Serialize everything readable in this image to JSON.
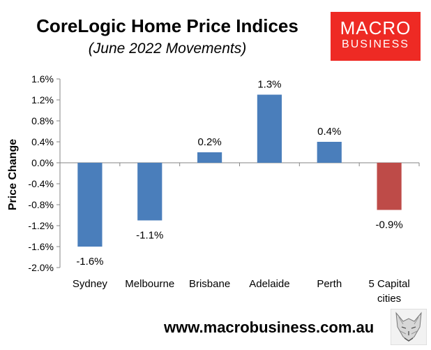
{
  "header": {
    "title": "CoreLogic Home Price Indices",
    "subtitle": "(June 2022 Movements)"
  },
  "logo": {
    "line1": "MACRO",
    "line2": "BUSINESS",
    "color": "#ee2a24"
  },
  "footer": {
    "url": "www.macrobusiness.com.au"
  },
  "chart_data": {
    "type": "bar",
    "title": "CoreLogic Home Price Indices",
    "subtitle": "(June 2022 Movements)",
    "ylabel": "Price Change",
    "xlabel": "",
    "categories": [
      "Sydney",
      "Melbourne",
      "Brisbane",
      "Adelaide",
      "Perth",
      "5 Capital cities"
    ],
    "category_lines": [
      [
        "Sydney"
      ],
      [
        "Melbourne"
      ],
      [
        "Brisbane"
      ],
      [
        "Adelaide"
      ],
      [
        "Perth"
      ],
      [
        "5 Capital",
        "cities"
      ]
    ],
    "values": [
      -1.6,
      -1.1,
      0.2,
      1.3,
      0.4,
      -0.9
    ],
    "data_labels": [
      "-1.6%",
      "-1.1%",
      "0.2%",
      "1.3%",
      "0.4%",
      "-0.9%"
    ],
    "bar_colors": [
      "#4a7ebb",
      "#4a7ebb",
      "#4a7ebb",
      "#4a7ebb",
      "#4a7ebb",
      "#be4b48"
    ],
    "ylim": [
      -2.0,
      1.6
    ],
    "yticks": [
      1.6,
      1.2,
      0.8,
      0.4,
      0.0,
      -0.4,
      -0.8,
      -1.2,
      -1.6,
      -2.0
    ],
    "ytick_labels": [
      "1.6%",
      "1.2%",
      "0.8%",
      "0.4%",
      "0.0%",
      "-0.4%",
      "-0.8%",
      "-1.2%",
      "-1.6%",
      "-2.0%"
    ],
    "grid": false,
    "legend": "none"
  }
}
